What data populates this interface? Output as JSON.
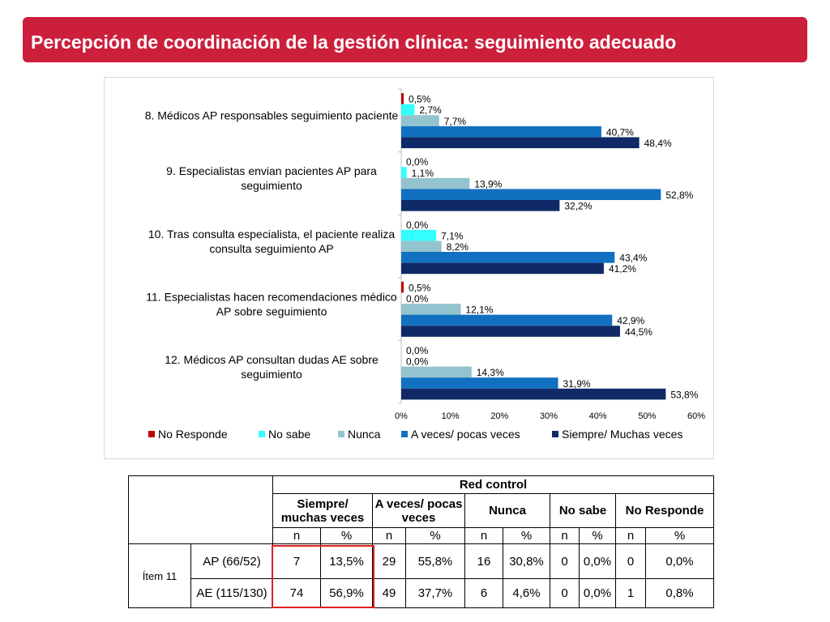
{
  "header": {
    "title": "Percepción de coordinación de la gestión clínica: seguimiento adecuado"
  },
  "chart_data": {
    "type": "bar",
    "orientation": "horizontal",
    "categories": [
      "8. Médicos AP responsables seguimiento paciente",
      "9. Especialistas envian pacientes AP para seguimiento",
      "10. Tras consulta especialista, el paciente realiza consulta seguimiento  AP",
      "11. Especialistas hacen recomendaciones médico AP sobre seguimiento",
      "12. Médicos AP consultan dudas AE   sobre seguimiento"
    ],
    "category_lines": [
      [
        "8. Médicos AP responsables seguimiento paciente"
      ],
      [
        "9. Especialistas envian pacientes AP para",
        "seguimiento"
      ],
      [
        "10. Tras consulta especialista, el paciente realiza",
        "consulta seguimiento  AP"
      ],
      [
        "11. Especialistas hacen recomendaciones médico",
        "AP sobre seguimiento"
      ],
      [
        "12. Médicos AP consultan dudas AE   sobre",
        "seguimiento"
      ]
    ],
    "series": [
      {
        "name": "No Responde",
        "color": "#c00000",
        "values": [
          0.5,
          0.0,
          0.0,
          0.5,
          0.0
        ],
        "labels": [
          "0,5%",
          "0,0%",
          "0,0%",
          "0,5%",
          "0,0%"
        ]
      },
      {
        "name": "No sabe",
        "color": "#33ffff",
        "values": [
          2.7,
          1.1,
          7.1,
          0.0,
          0.0
        ],
        "labels": [
          "2,7%",
          "1,1%",
          "7,1%",
          "0,0%",
          "0,0%"
        ]
      },
      {
        "name": "Nunca",
        "color": "#93c3cf",
        "values": [
          7.7,
          13.9,
          8.2,
          12.1,
          14.3
        ],
        "labels": [
          "7,7%",
          "13,9%",
          "8,2%",
          "12,1%",
          "14,3%"
        ]
      },
      {
        "name": "A veces/ pocas veces",
        "color": "#1170c0",
        "values": [
          40.7,
          52.8,
          43.4,
          42.9,
          31.9
        ],
        "labels": [
          "40,7%",
          "52,8%",
          "43,4%",
          "42,9%",
          "31,9%"
        ]
      },
      {
        "name": "Siempre/ Muchas veces",
        "color": "#0f2a66",
        "values": [
          48.4,
          32.2,
          41.2,
          44.5,
          53.8
        ],
        "labels": [
          "48,4%",
          "32,2%",
          "41,2%",
          "44,5%",
          "53,8%"
        ]
      }
    ],
    "xlim": [
      0,
      60
    ],
    "xticks": [
      "0%",
      "10%",
      "20%",
      "30%",
      "40%",
      "50%",
      "60%"
    ],
    "legend_position": "bottom",
    "grid": false
  },
  "table": {
    "group_header": "Red control",
    "col_headers": [
      "Siempre/ muchas veces",
      "A veces/ pocas veces",
      "Nunca",
      "No sabe",
      "No Responde"
    ],
    "sub_headers": [
      "n",
      "%",
      "n",
      "%",
      "n",
      "%",
      "n",
      "%",
      "n",
      "%"
    ],
    "item_label": "Ítem 11",
    "rows": [
      {
        "label": "AP (66/52)",
        "cells": [
          "7",
          "13,5%",
          "29",
          "55,8%",
          "16",
          "30,8%",
          "0",
          "0,0%",
          "0",
          "0,0%"
        ]
      },
      {
        "label": "AE (115/130)",
        "cells": [
          "74",
          "56,9%",
          "49",
          "37,7%",
          "6",
          "4,6%",
          "0",
          "0,0%",
          "1",
          "0,8%"
        ]
      }
    ]
  }
}
